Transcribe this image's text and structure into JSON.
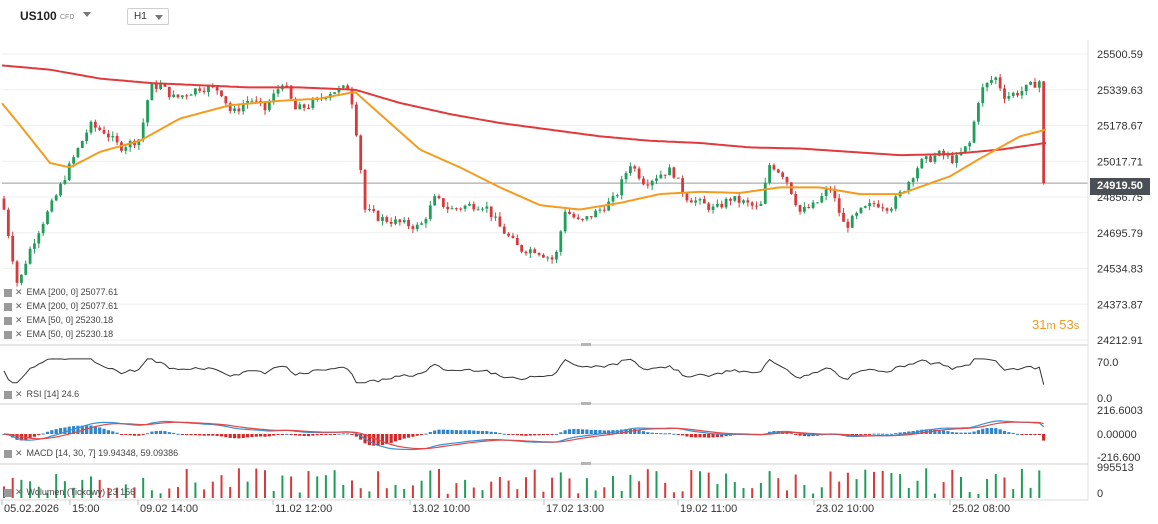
{
  "header": {
    "symbol": "US100",
    "symbol_type": "CFD",
    "timeframe": "H1"
  },
  "indicators": {
    "overlay_legend": [
      {
        "label": "EMA",
        "params": "[200, 0]",
        "value": "25077.61",
        "color": "#e03a3a"
      },
      {
        "label": "EMA",
        "params": "[200, 0]",
        "value": "25077.61",
        "color": "#e03a3a"
      },
      {
        "label": "EMA",
        "params": "[50, 0]",
        "value": "25230.18",
        "color": "#f39c1f"
      },
      {
        "label": "EMA",
        "params": "[50, 0]",
        "value": "25230.18",
        "color": "#f39c1f"
      }
    ],
    "rsi_legend": "RSI [14] 24.6",
    "macd_legend": "MACD [14, 30, 7] 19.94348, 59.09386",
    "volume_legend": "Wolumen (Tickowy) 23 156"
  },
  "price_axis": {
    "ticks": [
      "25500.59",
      "25339.63",
      "25178.67",
      "25017.71",
      "24856.75",
      "24695.79",
      "24534.83",
      "24373.87",
      "24212.91"
    ],
    "current_price": "24919.50"
  },
  "rsi_axis": {
    "ticks": [
      "70.0",
      "0.0"
    ]
  },
  "macd_axis": {
    "ticks": [
      "216.6003",
      "0.00000",
      "-216.600"
    ]
  },
  "volume_axis": {
    "ticks": [
      "995513",
      "0"
    ]
  },
  "time_axis": {
    "labels": [
      "05.02.2026",
      "15:00",
      "09.02 14:00",
      "11.02 12:00",
      "13.02 10:00",
      "17.02 13:00",
      "19.02 11:00",
      "23.02 10:00",
      "25.02 08:00"
    ]
  },
  "countdown": {
    "minutes": "31",
    "m_unit": "m",
    "seconds": "53",
    "s_unit": "s"
  },
  "colors": {
    "up": "#1e9e5a",
    "down": "#d63a3a",
    "ema200": "#e03a3a",
    "ema50": "#f39c1f",
    "rsi": "#333333",
    "macd_line": "#3a8fd6",
    "signal_line": "#e04848",
    "hist_pos": "#2c86c9",
    "hist_neg": "#d02a2a",
    "price_tag_bg": "#4a4e55"
  },
  "chart_data": {
    "type": "candlestick",
    "ylim": [
      24212.91,
      25500.59
    ],
    "price_anchors": [
      [
        0,
        24900
      ],
      [
        8,
        24700
      ],
      [
        18,
        24450
      ],
      [
        28,
        24600
      ],
      [
        40,
        24720
      ],
      [
        55,
        24850
      ],
      [
        70,
        25000
      ],
      [
        90,
        25180
      ],
      [
        105,
        25150
      ],
      [
        120,
        25080
      ],
      [
        140,
        25120
      ],
      [
        150,
        25350
      ],
      [
        160,
        25360
      ],
      [
        175,
        25300
      ],
      [
        200,
        25350
      ],
      [
        220,
        25340
      ],
      [
        232,
        25230
      ],
      [
        250,
        25300
      ],
      [
        265,
        25250
      ],
      [
        283,
        25380
      ],
      [
        295,
        25250
      ],
      [
        310,
        25270
      ],
      [
        330,
        25330
      ],
      [
        350,
        25350
      ],
      [
        358,
        25100
      ],
      [
        365,
        24800
      ],
      [
        380,
        24760
      ],
      [
        400,
        24740
      ],
      [
        420,
        24720
      ],
      [
        435,
        24850
      ],
      [
        450,
        24800
      ],
      [
        470,
        24820
      ],
      [
        485,
        24820
      ],
      [
        500,
        24720
      ],
      [
        520,
        24620
      ],
      [
        535,
        24620
      ],
      [
        555,
        24570
      ],
      [
        565,
        24800
      ],
      [
        580,
        24740
      ],
      [
        600,
        24800
      ],
      [
        615,
        24850
      ],
      [
        630,
        25010
      ],
      [
        645,
        24920
      ],
      [
        660,
        24960
      ],
      [
        672,
        24980
      ],
      [
        685,
        24860
      ],
      [
        700,
        24830
      ],
      [
        715,
        24800
      ],
      [
        730,
        24850
      ],
      [
        745,
        24830
      ],
      [
        760,
        24800
      ],
      [
        770,
        25010
      ],
      [
        785,
        24950
      ],
      [
        800,
        24790
      ],
      [
        815,
        24820
      ],
      [
        830,
        24900
      ],
      [
        845,
        24720
      ],
      [
        860,
        24790
      ],
      [
        875,
        24830
      ],
      [
        890,
        24810
      ],
      [
        905,
        24900
      ],
      [
        920,
        25010
      ],
      [
        940,
        25050
      ],
      [
        955,
        25020
      ],
      [
        970,
        25100
      ],
      [
        980,
        25330
      ],
      [
        995,
        25400
      ],
      [
        1005,
        25310
      ],
      [
        1020,
        25330
      ],
      [
        1040,
        25380
      ],
      [
        1046,
        24919.5
      ]
    ],
    "ema200_anchors": [
      [
        0,
        25450
      ],
      [
        50,
        25430
      ],
      [
        100,
        25390
      ],
      [
        150,
        25370
      ],
      [
        200,
        25360
      ],
      [
        250,
        25350
      ],
      [
        300,
        25350
      ],
      [
        355,
        25340
      ],
      [
        400,
        25280
      ],
      [
        450,
        25230
      ],
      [
        500,
        25190
      ],
      [
        550,
        25160
      ],
      [
        600,
        25130
      ],
      [
        650,
        25110
      ],
      [
        700,
        25100
      ],
      [
        750,
        25080
      ],
      [
        800,
        25075
      ],
      [
        850,
        25060
      ],
      [
        900,
        25045
      ],
      [
        950,
        25050
      ],
      [
        1000,
        25070
      ],
      [
        1046,
        25100
      ]
    ],
    "ema50_anchors": [
      [
        0,
        25290
      ],
      [
        20,
        25180
      ],
      [
        50,
        25010
      ],
      [
        70,
        24990
      ],
      [
        100,
        25060
      ],
      [
        140,
        25110
      ],
      [
        180,
        25210
      ],
      [
        230,
        25270
      ],
      [
        280,
        25290
      ],
      [
        320,
        25300
      ],
      [
        355,
        25330
      ],
      [
        380,
        25230
      ],
      [
        420,
        25070
      ],
      [
        460,
        24990
      ],
      [
        500,
        24900
      ],
      [
        540,
        24820
      ],
      [
        580,
        24800
      ],
      [
        620,
        24830
      ],
      [
        660,
        24870
      ],
      [
        700,
        24880
      ],
      [
        740,
        24875
      ],
      [
        780,
        24900
      ],
      [
        820,
        24900
      ],
      [
        860,
        24870
      ],
      [
        900,
        24870
      ],
      [
        950,
        24950
      ],
      [
        980,
        25030
      ],
      [
        1020,
        25130
      ],
      [
        1046,
        25160
      ]
    ]
  }
}
